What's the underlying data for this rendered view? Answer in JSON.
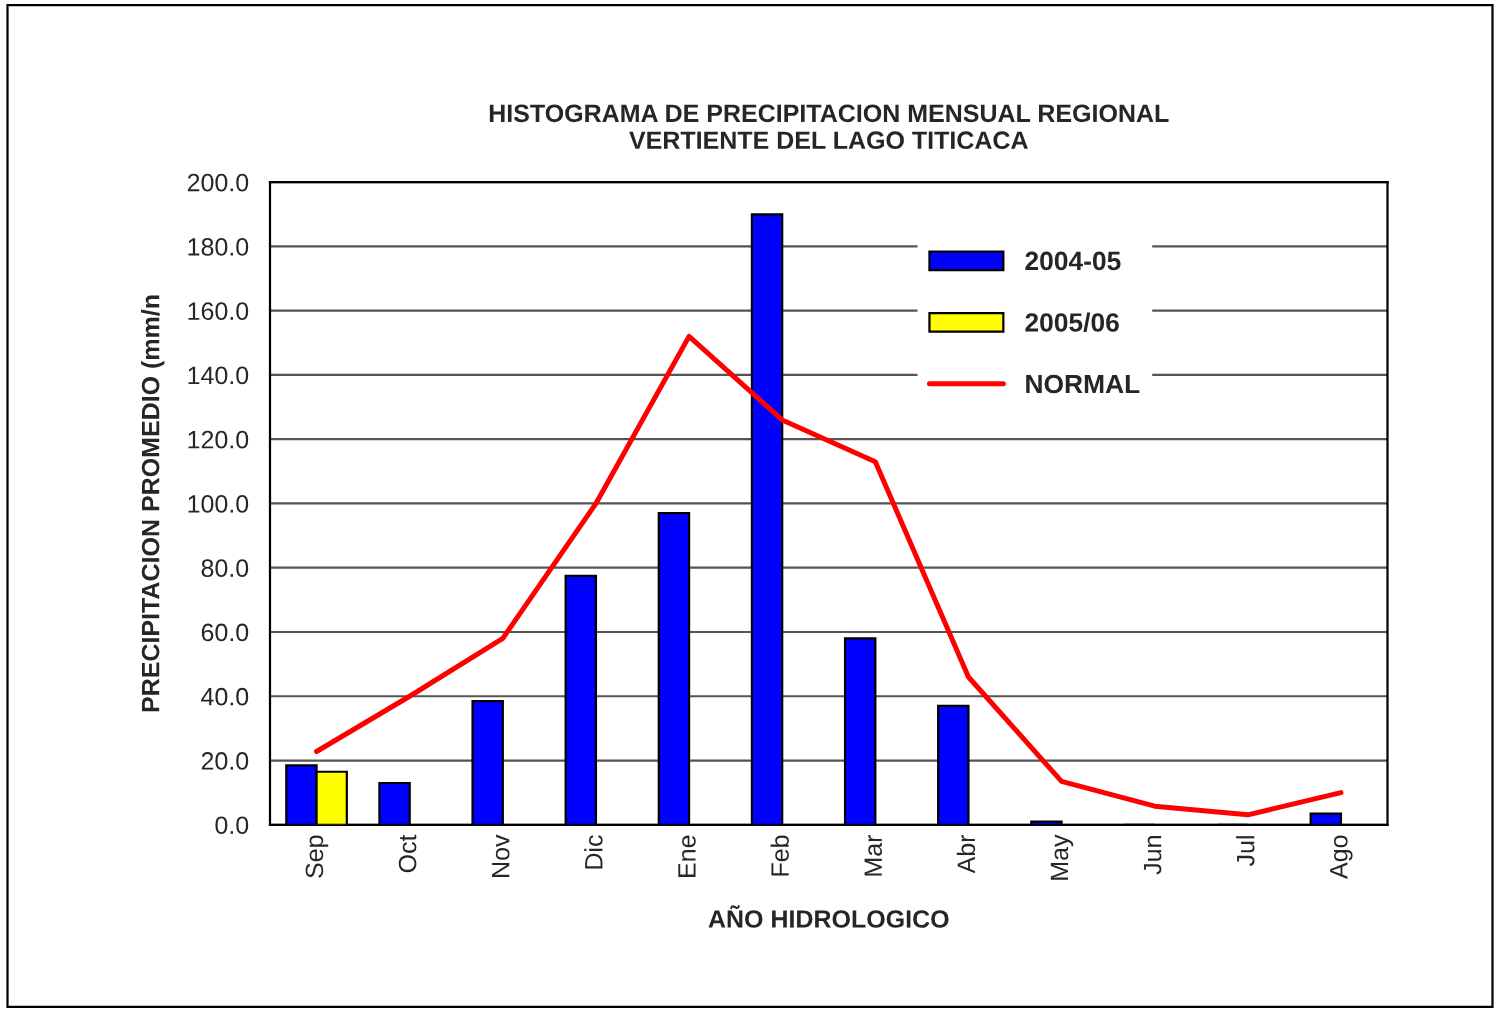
{
  "chart_data": {
    "type": "bar",
    "title": "HISTOGRAMA DE PRECIPITACION MENSUAL REGIONAL\nVERTIENTE DEL LAGO TITICACA",
    "xlabel": "AÑO HIDROLOGICO",
    "ylabel": "PRECIPITACION PROMEDIO (mm/n",
    "categories": [
      "Sep",
      "Oct",
      "Nov",
      "Dic",
      "Ene",
      "Feb",
      "Mar",
      "Abr",
      "May",
      "Jun",
      "Jul",
      "Ago"
    ],
    "series": [
      {
        "name": "2004-05",
        "color": "#0000ff",
        "values": [
          18.5,
          13,
          38.5,
          77.5,
          97,
          190,
          58,
          37,
          1,
          0,
          0,
          3.5
        ]
      },
      {
        "name": "2005/06",
        "color": "#ffff00",
        "values": [
          16.5,
          null,
          null,
          null,
          null,
          null,
          null,
          null,
          null,
          null,
          null,
          null
        ]
      },
      {
        "name": "NORMAL",
        "type": "line",
        "color": "#ff0000",
        "values": [
          22.8,
          40,
          58,
          100,
          152,
          126,
          113,
          46,
          13.5,
          5.8,
          3.1,
          10
        ]
      }
    ],
    "ylim": [
      0,
      200
    ],
    "yticks": [
      {
        "value": 0,
        "label": "0.0"
      },
      {
        "value": 20,
        "label": "20.0"
      },
      {
        "value": 40,
        "label": "40.0"
      },
      {
        "value": 60,
        "label": "60.0"
      },
      {
        "value": 80,
        "label": "80.0"
      },
      {
        "value": 100,
        "label": "100.0"
      },
      {
        "value": 120,
        "label": "120.0"
      },
      {
        "value": 140,
        "label": "140.0"
      },
      {
        "value": 160,
        "label": "160.0"
      },
      {
        "value": 180,
        "label": "180.0"
      },
      {
        "value": 200,
        "label": "200.0"
      }
    ],
    "grid": "y",
    "legend": "top right",
    "marker": "none",
    "line_style": "solid"
  }
}
